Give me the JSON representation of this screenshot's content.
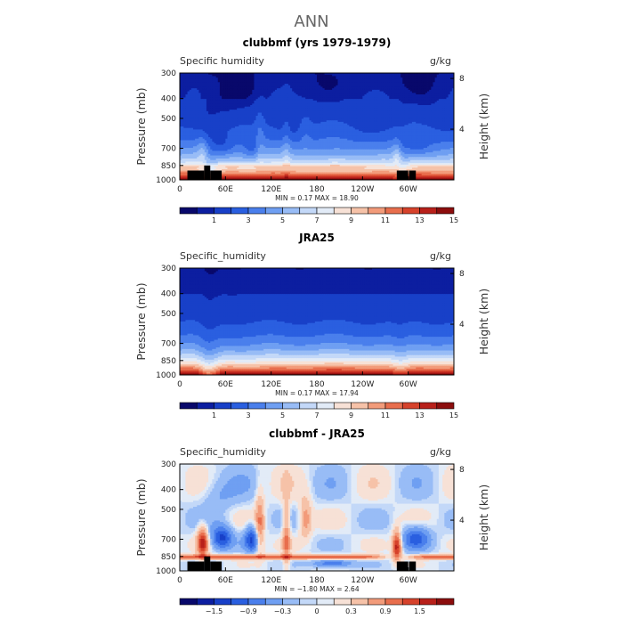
{
  "figure": {
    "title": "ANN"
  },
  "colors": {
    "cmap": [
      "#08086b",
      "#0c1ea0",
      "#1840c8",
      "#2a5fe0",
      "#4a7fec",
      "#6f9ff2",
      "#98bcf6",
      "#c3d8f8",
      "#e2ebf7",
      "#f7e1d6",
      "#f6c2a8",
      "#f29b7a",
      "#e86e4d",
      "#d6422b",
      "#b8201a",
      "#8c0d0d"
    ]
  },
  "chart_data": [
    {
      "type": "heatmap",
      "title": "clubbmf (yrs 1979-1979)",
      "variable_label": "Specific humidity",
      "units": "g/kg",
      "ylabel": "Pressure (mb)",
      "ylabel_right": "Height (km)",
      "x_ticks": [
        "0",
        "60E",
        "120E",
        "180",
        "120W",
        "60W"
      ],
      "x_tick_values": [
        0,
        60,
        120,
        180,
        240,
        300
      ],
      "xlim": [
        0,
        360
      ],
      "y_ticks": [
        "300",
        "400",
        "500",
        "700",
        "850",
        "1000"
      ],
      "y_tick_values": [
        300,
        400,
        500,
        700,
        850,
        1000
      ],
      "ylim": [
        300,
        1000
      ],
      "height_ticks": [
        "8",
        "4"
      ],
      "height_tick_values": [
        8,
        4
      ],
      "min_max_text": "MIN =    0.17   MAX =   18.90",
      "min": 0.17,
      "max": 18.9,
      "colorbar_levels": [
        0.5,
        1,
        2,
        3,
        4,
        5,
        6,
        7,
        8,
        9,
        10,
        11,
        12,
        13,
        14,
        15
      ],
      "colorbar_labels": [
        "1",
        "3",
        "5",
        "7",
        "9",
        "11",
        "13",
        "15"
      ],
      "colorbar_label_values": [
        1,
        3,
        5,
        7,
        9,
        11,
        13,
        15
      ],
      "field": "bias_mode_model"
    },
    {
      "type": "heatmap",
      "title": "JRA25",
      "variable_label": "Specific_humidity",
      "units": "g/kg",
      "ylabel": "Pressure (mb)",
      "ylabel_right": "Height (km)",
      "x_ticks": [
        "0",
        "60E",
        "120E",
        "180",
        "120W",
        "60W"
      ],
      "x_tick_values": [
        0,
        60,
        120,
        180,
        240,
        300
      ],
      "xlim": [
        0,
        360
      ],
      "y_ticks": [
        "300",
        "400",
        "500",
        "700",
        "850",
        "1000"
      ],
      "y_tick_values": [
        300,
        400,
        500,
        700,
        850,
        1000
      ],
      "ylim": [
        300,
        1000
      ],
      "height_ticks": [
        "8",
        "4"
      ],
      "height_tick_values": [
        8,
        4
      ],
      "min_max_text": "MIN =    0.17   MAX =   17.94",
      "min": 0.17,
      "max": 17.94,
      "colorbar_levels": [
        0.5,
        1,
        2,
        3,
        4,
        5,
        6,
        7,
        8,
        9,
        10,
        11,
        12,
        13,
        14,
        15
      ],
      "colorbar_labels": [
        "1",
        "3",
        "5",
        "7",
        "9",
        "11",
        "13",
        "15"
      ],
      "colorbar_label_values": [
        1,
        3,
        5,
        7,
        9,
        11,
        13,
        15
      ],
      "field": "reanalysis"
    },
    {
      "type": "heatmap",
      "title": "clubbmf - JRA25",
      "variable_label": "Specific_humidity",
      "units": "g/kg",
      "ylabel": "Pressure (mb)",
      "ylabel_right": "Height (km)",
      "x_ticks": [
        "0",
        "60E",
        "120E",
        "180",
        "120W",
        "60W"
      ],
      "x_tick_values": [
        0,
        60,
        120,
        180,
        240,
        300
      ],
      "xlim": [
        0,
        360
      ],
      "y_ticks": [
        "300",
        "400",
        "500",
        "700",
        "850",
        "1000"
      ],
      "y_tick_values": [
        300,
        400,
        500,
        700,
        850,
        1000
      ],
      "ylim": [
        300,
        1000
      ],
      "height_ticks": [
        "8",
        "4"
      ],
      "height_tick_values": [
        8,
        4
      ],
      "min_max_text": "MIN =   −1.80   MAX =    2.64",
      "min": -1.8,
      "max": 2.64,
      "colorbar_levels": [
        -1.8,
        -1.5,
        -1.2,
        -0.9,
        -0.6,
        -0.3,
        -0.1,
        0,
        0.1,
        0.3,
        0.6,
        0.9,
        1.2,
        1.5,
        1.8,
        2.1
      ],
      "colorbar_labels": [
        "−1.5",
        "−0.9",
        "−0.3",
        "0",
        "0.3",
        "0.9",
        "1.5"
      ],
      "colorbar_label_values": [
        -1.5,
        -0.9,
        -0.3,
        0,
        0.3,
        0.9,
        1.5
      ],
      "field": "difference"
    }
  ]
}
